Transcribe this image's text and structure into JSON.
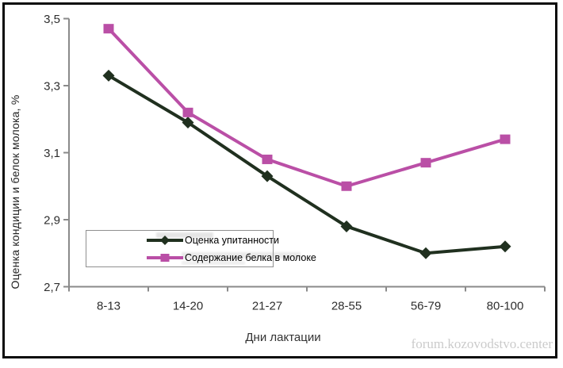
{
  "watermark": "forum.kozovodstvo.center",
  "colors": {
    "axis": "#8a8a8a",
    "tick_text": "#2e2e2e",
    "series1": "#20301f",
    "series2": "#ba4fa6",
    "watermark_text": "#cbcbcb"
  },
  "chart_data": {
    "type": "line",
    "title": "",
    "categories": [
      "8-13",
      "14-20",
      "21-27",
      "28-55",
      "56-79",
      "80-100"
    ],
    "series": [
      {
        "name": "Оценка упитанности",
        "color": "#20301f",
        "marker": "diamond",
        "values": [
          3.33,
          3.19,
          3.03,
          2.88,
          2.8,
          2.82
        ]
      },
      {
        "name": "Содержание белка в молоке",
        "color": "#ba4fa6",
        "marker": "square",
        "values": [
          3.47,
          3.22,
          3.08,
          3.0,
          3.07,
          3.14
        ]
      }
    ],
    "xlabel": "Дни лактации",
    "ylabel": "Оценка кондиции и белок молока, %",
    "ylim": [
      2.7,
      3.5
    ],
    "yticks": [
      2.7,
      2.9,
      3.1,
      3.3,
      3.5
    ],
    "ytick_labels": [
      "2,7",
      "2,9",
      "3,1",
      "3,3",
      "3,5"
    ],
    "grid": false,
    "legend_position": "inside-bottom-left"
  }
}
